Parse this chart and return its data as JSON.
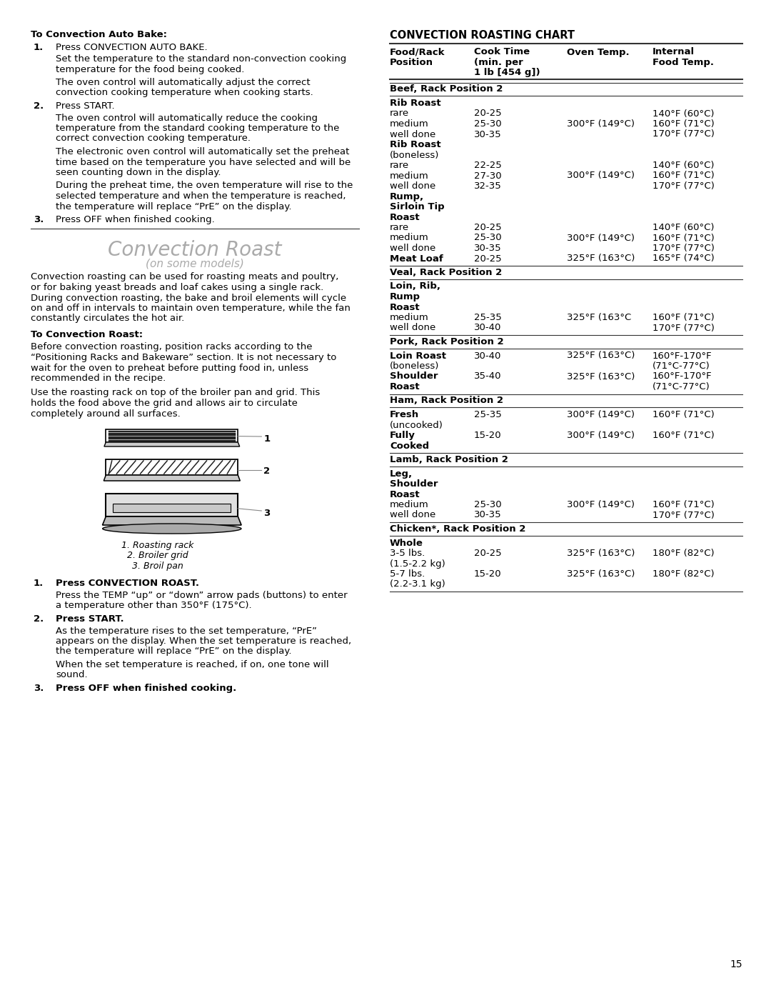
{
  "page_num": "15",
  "bg_color": "#ffffff",
  "left_content": {
    "section1_title": "To Convection Auto Bake:",
    "section1_items": [
      {
        "num": "1.",
        "main": "Press CONVECTION AUTO BAKE.",
        "subs": [
          "Set the temperature to the standard non-convection cooking\ntemperature for the food being cooked.",
          "The oven control will automatically adjust the correct\nconvection cooking temperature when cooking starts."
        ]
      },
      {
        "num": "2.",
        "main": "Press START.",
        "subs": [
          "The oven control will automatically reduce the cooking\ntemperature from the standard cooking temperature to the\ncorrect convection cooking temperature.",
          "The electronic oven control will automatically set the preheat\ntime based on the temperature you have selected and will be\nseen counting down in the display.",
          "During the preheat time, the oven temperature will rise to the\nselected temperature and when the temperature is reached,\nthe temperature will replace “PrE” on the display."
        ]
      },
      {
        "num": "3.",
        "main": "Press OFF when finished cooking.",
        "subs": []
      }
    ],
    "section2_title": "Convection Roast",
    "section2_subtitle": "(on some models)",
    "section2_intro": "Convection roasting can be used for roasting meats and poultry,\nor for baking yeast breads and loaf cakes using a single rack.\nDuring convection roasting, the bake and broil elements will cycle\non and off in intervals to maintain oven temperature, while the fan\nconstantly circulates the hot air.",
    "section3_title": "To Convection Roast:",
    "section3_para1": "Before convection roasting, position racks according to the\n“Positioning Racks and Bakeware” section. It is not necessary to\nwait for the oven to preheat before putting food in, unless\nrecommended in the recipe.",
    "section3_para2": "Use the roasting rack on top of the broiler pan and grid. This\nholds the food above the grid and allows air to circulate\ncompletely around all surfaces.",
    "figure_labels": [
      "1. Roasting rack",
      "2. Broiler grid",
      "3. Broil pan"
    ],
    "section4_items": [
      {
        "num": "1.",
        "main": "Press CONVECTION ROAST.",
        "subs": [
          "Press the TEMP “up” or “down” arrow pads (buttons) to enter\na temperature other than 350°F (175°C)."
        ]
      },
      {
        "num": "2.",
        "main": "Press START.",
        "subs": [
          "As the temperature rises to the set temperature, “PrE”\nappears on the display. When the set temperature is reached,\nthe temperature will replace “PrE” on the display.",
          "When the set temperature is reached, if on, one tone will\nsound."
        ]
      },
      {
        "num": "3.",
        "main": "Press OFF when finished cooking.",
        "subs": []
      }
    ]
  },
  "right_content": {
    "chart_title": "CONVECTION ROASTING CHART",
    "col_headers": [
      "Food/Rack\nPosition",
      "Cook Time\n(min. per\n1 lb [454 g])",
      "Oven Temp.",
      "Internal\nFood Temp."
    ],
    "sections": [
      {
        "section_header": "Beef, Rack Position 2",
        "rows": [
          {
            "item": "Rib Roast",
            "bold": true,
            "cook_time": "",
            "oven_temp": "",
            "internal_temp": ""
          },
          {
            "item": "rare",
            "bold": false,
            "cook_time": "20-25",
            "oven_temp": "",
            "internal_temp": "140°F (60°C)"
          },
          {
            "item": "medium",
            "bold": false,
            "cook_time": "25-30",
            "oven_temp": "300°F (149°C)",
            "internal_temp": "160°F (71°C)"
          },
          {
            "item": "well done",
            "bold": false,
            "cook_time": "30-35",
            "oven_temp": "",
            "internal_temp": "170°F (77°C)"
          },
          {
            "item": "Rib Roast",
            "bold": true,
            "cook_time": "",
            "oven_temp": "",
            "internal_temp": ""
          },
          {
            "item": "(boneless)",
            "bold": false,
            "cook_time": "",
            "oven_temp": "",
            "internal_temp": ""
          },
          {
            "item": "rare",
            "bold": false,
            "cook_time": "22-25",
            "oven_temp": "",
            "internal_temp": "140°F (60°C)"
          },
          {
            "item": "medium",
            "bold": false,
            "cook_time": "27-30",
            "oven_temp": "300°F (149°C)",
            "internal_temp": "160°F (71°C)"
          },
          {
            "item": "well done",
            "bold": false,
            "cook_time": "32-35",
            "oven_temp": "",
            "internal_temp": "170°F (77°C)"
          },
          {
            "item": "Rump,",
            "bold": true,
            "cook_time": "",
            "oven_temp": "",
            "internal_temp": ""
          },
          {
            "item": "Sirloin Tip",
            "bold": true,
            "cook_time": "",
            "oven_temp": "",
            "internal_temp": ""
          },
          {
            "item": "Roast",
            "bold": true,
            "cook_time": "",
            "oven_temp": "",
            "internal_temp": ""
          },
          {
            "item": "rare",
            "bold": false,
            "cook_time": "20-25",
            "oven_temp": "",
            "internal_temp": "140°F (60°C)"
          },
          {
            "item": "medium",
            "bold": false,
            "cook_time": "25-30",
            "oven_temp": "300°F (149°C)",
            "internal_temp": "160°F (71°C)"
          },
          {
            "item": "well done",
            "bold": false,
            "cook_time": "30-35",
            "oven_temp": "",
            "internal_temp": "170°F (77°C)"
          },
          {
            "item": "Meat Loaf",
            "bold": true,
            "cook_time": "20-25",
            "oven_temp": "325°F (163°C)",
            "internal_temp": "165°F (74°C)"
          }
        ]
      },
      {
        "section_header": "Veal, Rack Position 2",
        "rows": [
          {
            "item": "Loin, Rib,",
            "bold": true,
            "cook_time": "",
            "oven_temp": "",
            "internal_temp": ""
          },
          {
            "item": "Rump",
            "bold": true,
            "cook_time": "",
            "oven_temp": "",
            "internal_temp": ""
          },
          {
            "item": "Roast",
            "bold": true,
            "cook_time": "",
            "oven_temp": "",
            "internal_temp": ""
          },
          {
            "item": "medium",
            "bold": false,
            "cook_time": "25-35",
            "oven_temp": "325°F (163°C",
            "internal_temp": "160°F (71°C)"
          },
          {
            "item": "well done",
            "bold": false,
            "cook_time": "30-40",
            "oven_temp": "",
            "internal_temp": "170°F (77°C)"
          }
        ]
      },
      {
        "section_header": "Pork, Rack Position 2",
        "rows": [
          {
            "item": "Loin Roast",
            "bold": true,
            "cook_time": "30-40",
            "oven_temp": "325°F (163°C)",
            "internal_temp": "160°F-170°F"
          },
          {
            "item": "(boneless)",
            "bold": false,
            "cook_time": "",
            "oven_temp": "",
            "internal_temp": "(71°C-77°C)"
          },
          {
            "item": "Shoulder",
            "bold": true,
            "cook_time": "35-40",
            "oven_temp": "325°F (163°C)",
            "internal_temp": "160°F-170°F"
          },
          {
            "item": "Roast",
            "bold": true,
            "cook_time": "",
            "oven_temp": "",
            "internal_temp": "(71°C-77°C)"
          }
        ]
      },
      {
        "section_header": "Ham, Rack Position 2",
        "rows": [
          {
            "item": "Fresh",
            "bold": true,
            "cook_time": "25-35",
            "oven_temp": "300°F (149°C)",
            "internal_temp": "160°F (71°C)"
          },
          {
            "item": "(uncooked)",
            "bold": false,
            "cook_time": "",
            "oven_temp": "",
            "internal_temp": ""
          },
          {
            "item": "Fully",
            "bold": true,
            "cook_time": "15-20",
            "oven_temp": "300°F (149°C)",
            "internal_temp": "160°F (71°C)"
          },
          {
            "item": "Cooked",
            "bold": true,
            "cook_time": "",
            "oven_temp": "",
            "internal_temp": ""
          }
        ]
      },
      {
        "section_header": "Lamb, Rack Position 2",
        "rows": [
          {
            "item": "Leg,",
            "bold": true,
            "cook_time": "",
            "oven_temp": "",
            "internal_temp": ""
          },
          {
            "item": "Shoulder",
            "bold": true,
            "cook_time": "",
            "oven_temp": "",
            "internal_temp": ""
          },
          {
            "item": "Roast",
            "bold": true,
            "cook_time": "",
            "oven_temp": "",
            "internal_temp": ""
          },
          {
            "item": "medium",
            "bold": false,
            "cook_time": "25-30",
            "oven_temp": "300°F (149°C)",
            "internal_temp": "160°F (71°C)"
          },
          {
            "item": "well done",
            "bold": false,
            "cook_time": "30-35",
            "oven_temp": "",
            "internal_temp": "170°F (77°C)"
          }
        ]
      },
      {
        "section_header": "Chicken*, Rack Position 2",
        "rows": [
          {
            "item": "Whole",
            "bold": true,
            "cook_time": "",
            "oven_temp": "",
            "internal_temp": ""
          },
          {
            "item": "3-5 lbs.",
            "bold": false,
            "cook_time": "20-25",
            "oven_temp": "325°F (163°C)",
            "internal_temp": "180°F (82°C)"
          },
          {
            "item": "(1.5-2.2 kg)",
            "bold": false,
            "cook_time": "",
            "oven_temp": "",
            "internal_temp": ""
          },
          {
            "item": "5-7 lbs.",
            "bold": false,
            "cook_time": "15-20",
            "oven_temp": "325°F (163°C)",
            "internal_temp": "180°F (82°C)"
          },
          {
            "item": "(2.2-3.1 kg)",
            "bold": false,
            "cook_time": "",
            "oven_temp": "",
            "internal_temp": ""
          }
        ]
      }
    ]
  }
}
